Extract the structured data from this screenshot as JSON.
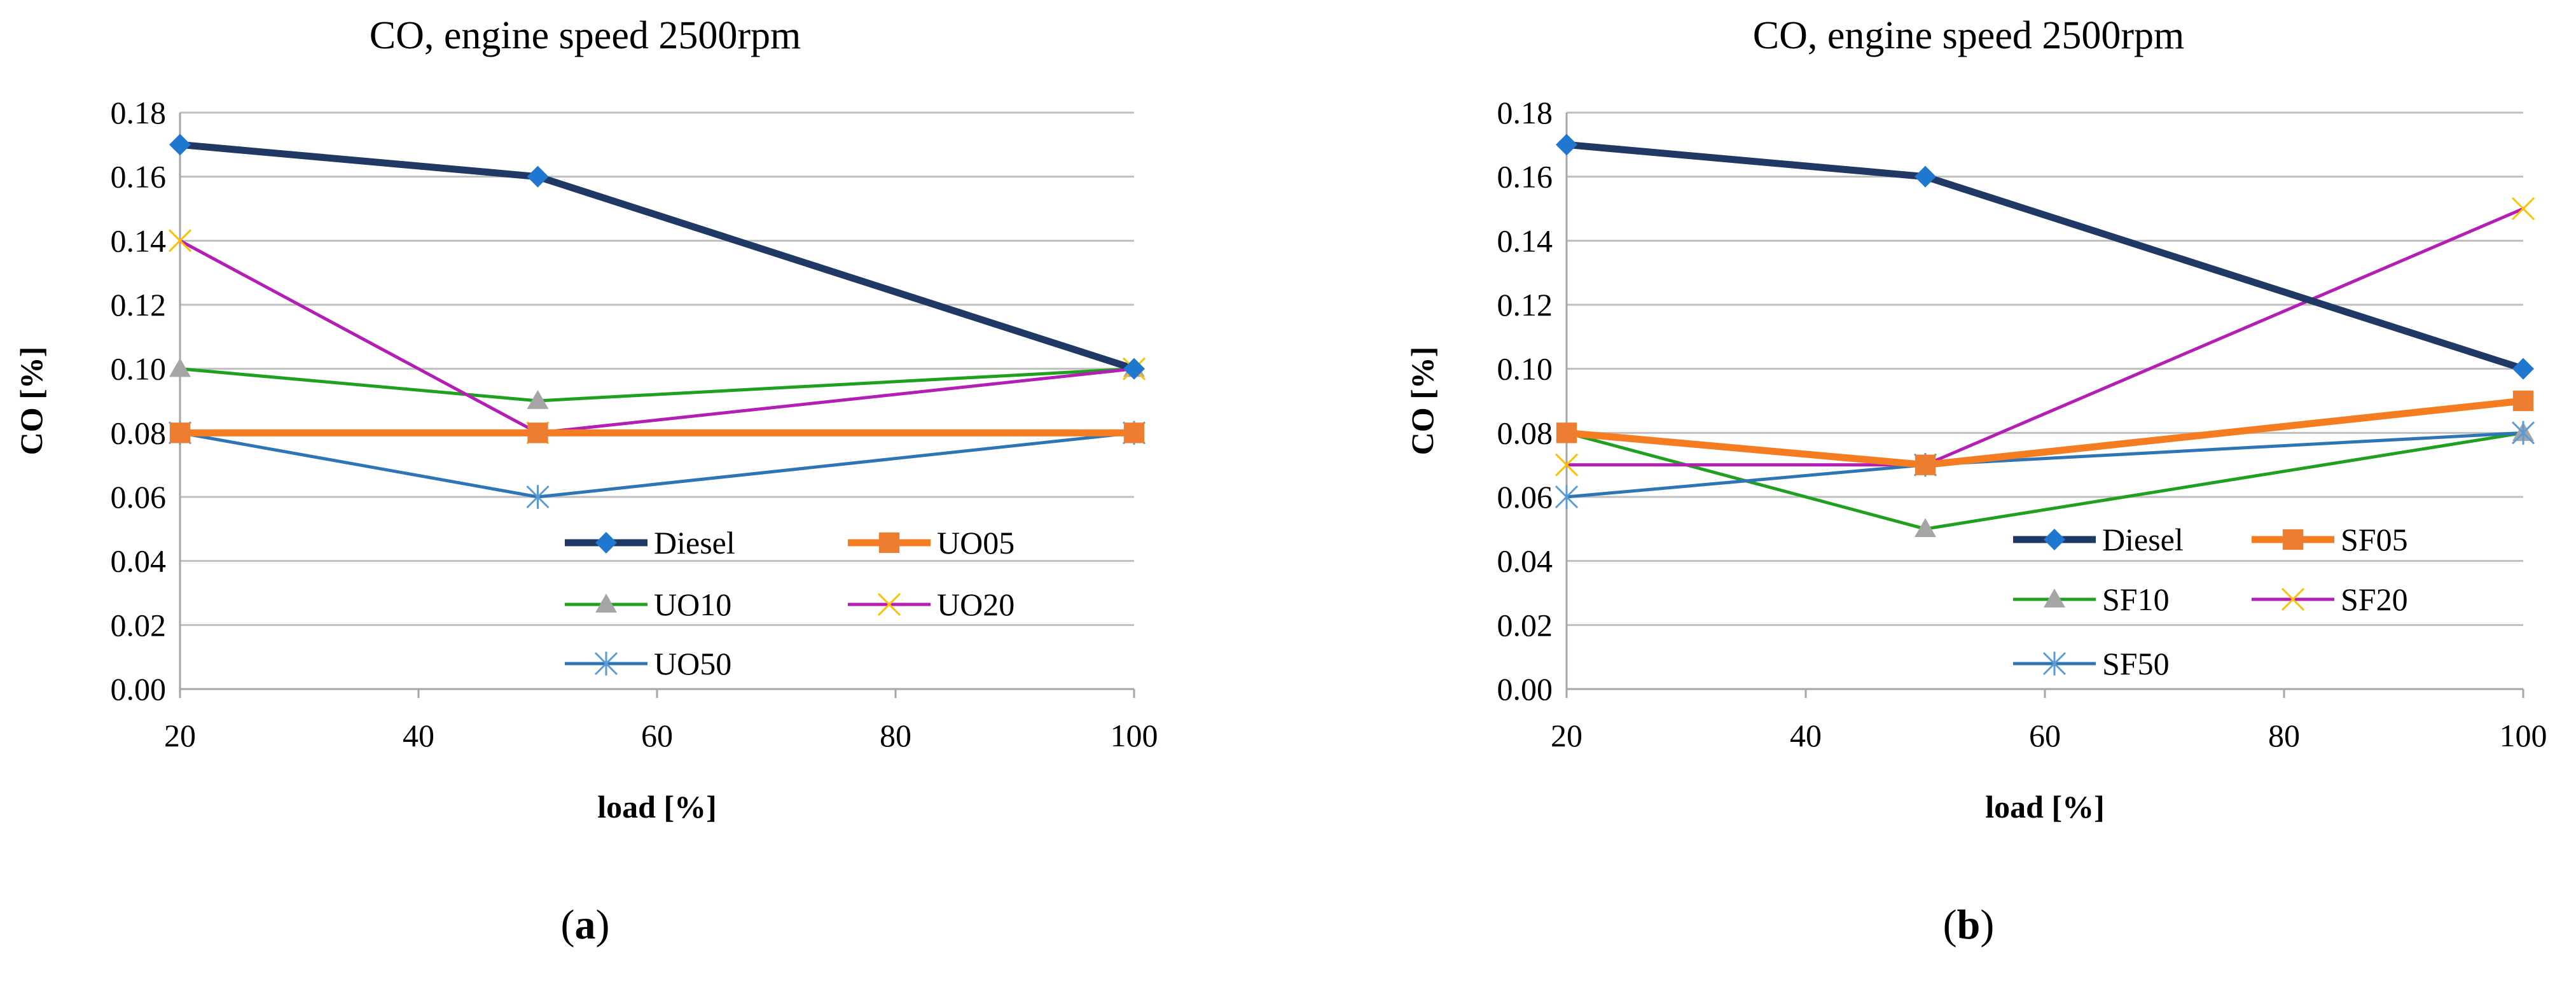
{
  "chart_data": [
    {
      "type": "line",
      "panel_label": "a",
      "title": "CO, engine speed 2500rpm",
      "xlabel": "load [%]",
      "ylabel": "CO [%]",
      "x": [
        20,
        50,
        100
      ],
      "xlim": [
        20,
        100
      ],
      "xticks": [
        "20",
        "40",
        "60",
        "80",
        "100"
      ],
      "ylim": [
        0,
        0.18
      ],
      "yticks": [
        "0.00",
        "0.02",
        "0.04",
        "0.06",
        "0.08",
        "0.10",
        "0.12",
        "0.14",
        "0.16",
        "0.18"
      ],
      "grid": true,
      "legend_position": "bottom-right",
      "series": [
        {
          "name": "Diesel",
          "values": [
            0.17,
            0.16,
            0.1
          ],
          "color": "#1F3864",
          "marker": "diamond",
          "marker_color": "#1F77D0"
        },
        {
          "name": "UO05",
          "values": [
            0.08,
            0.08,
            0.08
          ],
          "color": "#F57C20",
          "marker": "square",
          "marker_color": "#ED7D31"
        },
        {
          "name": "UO10",
          "values": [
            0.1,
            0.09,
            0.1
          ],
          "color": "#1FA01F",
          "marker": "triangle",
          "marker_color": "#A5A5A5"
        },
        {
          "name": "UO20",
          "values": [
            0.14,
            0.08,
            0.1
          ],
          "color": "#B41EB4",
          "marker": "x",
          "marker_color": "#FFC000"
        },
        {
          "name": "UO50",
          "values": [
            0.08,
            0.06,
            0.08
          ],
          "color": "#2E75B6",
          "marker": "asterisk",
          "marker_color": "#5B9BD5"
        }
      ]
    },
    {
      "type": "line",
      "panel_label": "b",
      "title": "CO, engine speed 2500rpm",
      "xlabel": "load [%]",
      "ylabel": "CO [%]",
      "x": [
        20,
        50,
        100
      ],
      "xlim": [
        20,
        100
      ],
      "xticks": [
        "20",
        "40",
        "60",
        "80",
        "100"
      ],
      "ylim": [
        0,
        0.18
      ],
      "yticks": [
        "0.00",
        "0.02",
        "0.04",
        "0.06",
        "0.08",
        "0.10",
        "0.12",
        "0.14",
        "0.16",
        "0.18"
      ],
      "grid": true,
      "legend_position": "bottom-right",
      "series": [
        {
          "name": "Diesel",
          "values": [
            0.17,
            0.16,
            0.1
          ],
          "color": "#1F3864",
          "marker": "diamond",
          "marker_color": "#1F77D0"
        },
        {
          "name": "SF05",
          "values": [
            0.08,
            0.07,
            0.09
          ],
          "color": "#F57C20",
          "marker": "square",
          "marker_color": "#ED7D31"
        },
        {
          "name": "SF10",
          "values": [
            0.08,
            0.05,
            0.08
          ],
          "color": "#1FA01F",
          "marker": "triangle",
          "marker_color": "#A5A5A5"
        },
        {
          "name": "SF20",
          "values": [
            0.07,
            0.07,
            0.15
          ],
          "color": "#B41EB4",
          "marker": "x",
          "marker_color": "#FFC000"
        },
        {
          "name": "SF50",
          "values": [
            0.06,
            0.07,
            0.08
          ],
          "color": "#2E75B6",
          "marker": "asterisk",
          "marker_color": "#5B9BD5"
        }
      ]
    }
  ]
}
